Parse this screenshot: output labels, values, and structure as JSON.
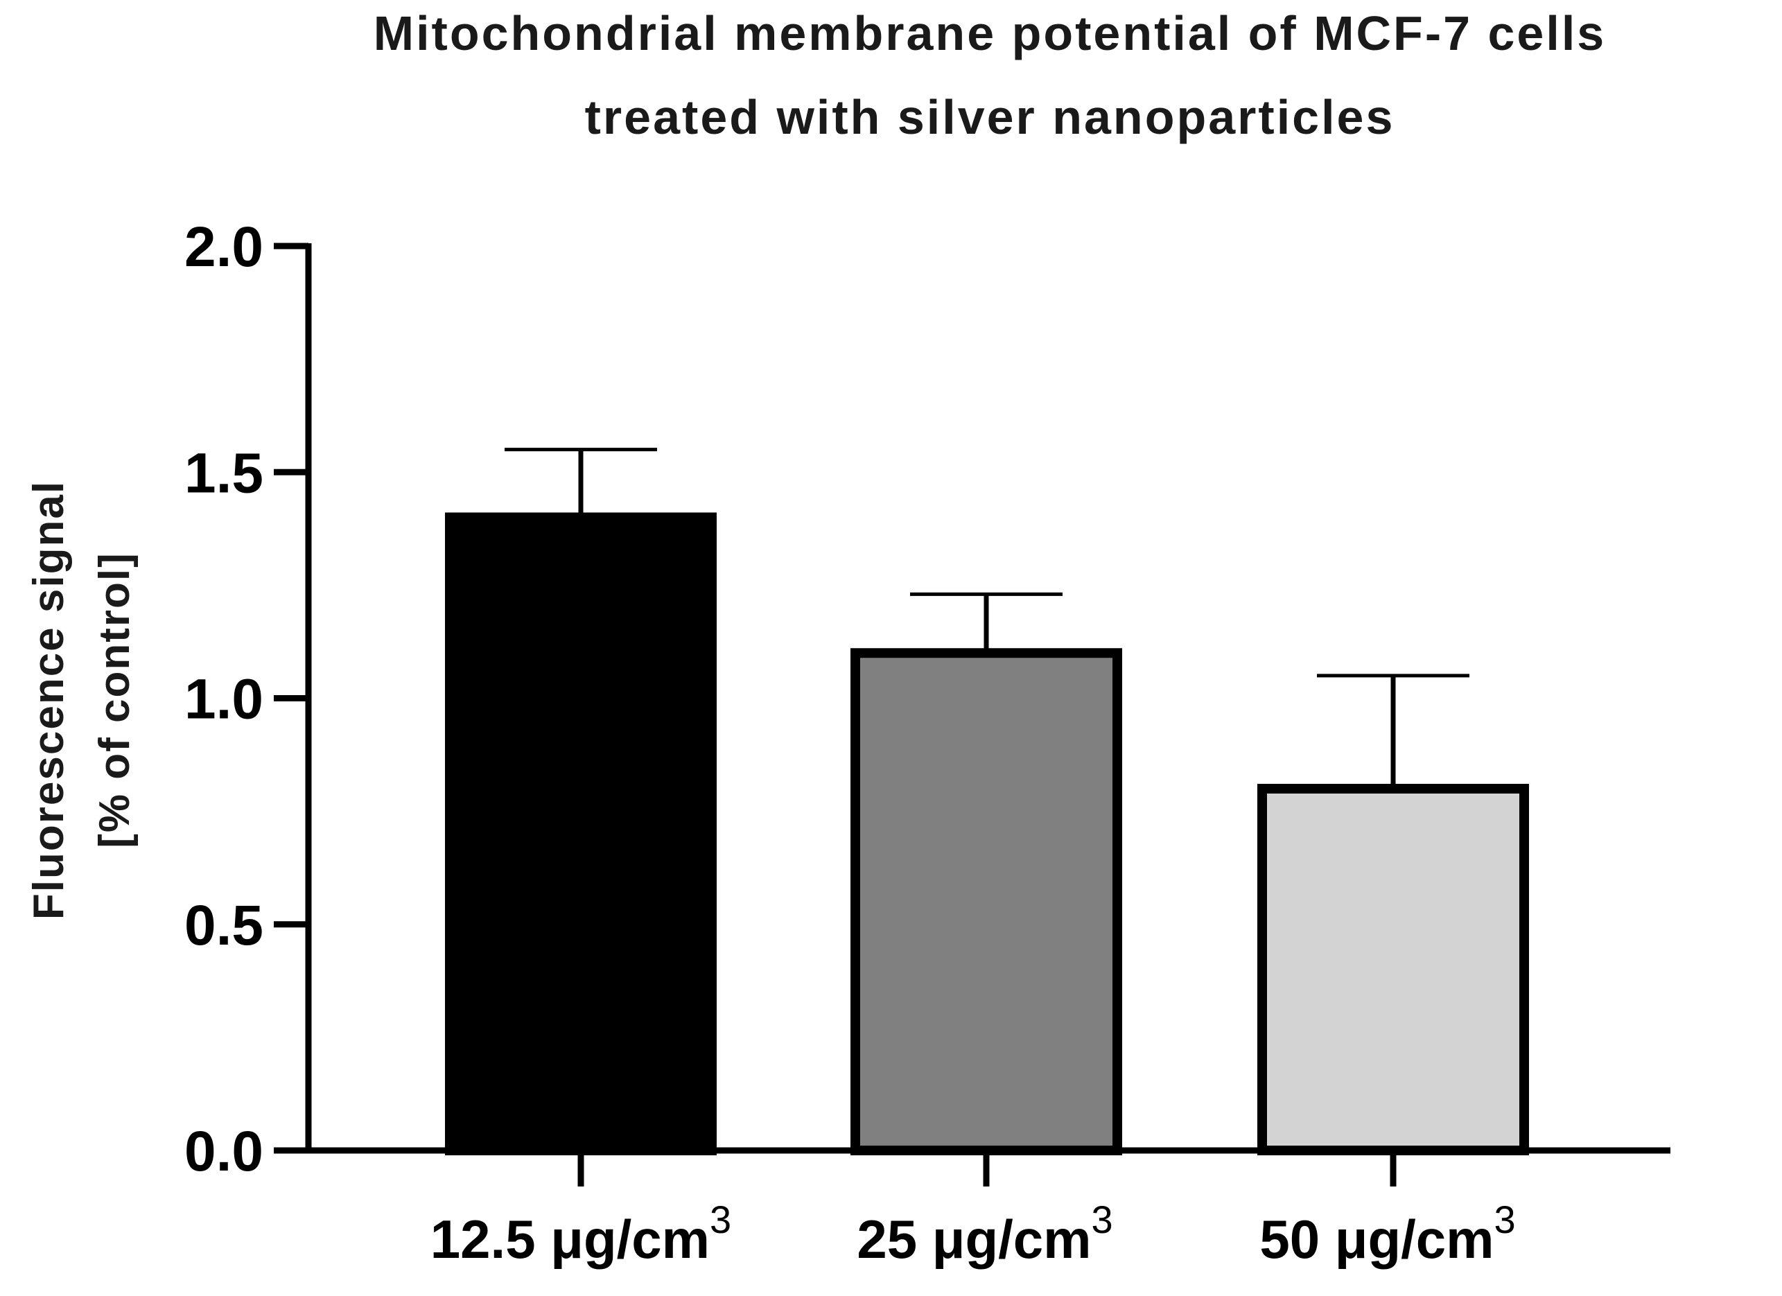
{
  "chart_data": {
    "type": "bar",
    "title_lines": [
      "Mitochondrial membrane potential of MCF-7 cells",
      "treated with silver nanoparticles"
    ],
    "ylabel_lines": [
      "Fluorescence signal",
      "[% of control]"
    ],
    "xlabel": "",
    "categories": [
      {
        "text": "12.5 μg/cm",
        "sup": "3"
      },
      {
        "text": "25 μg/cm",
        "sup": "3"
      },
      {
        "text": "50 μg/cm",
        "sup": "3"
      }
    ],
    "values": [
      1.4,
      1.1,
      0.8
    ],
    "errors": [
      0.15,
      0.13,
      0.25
    ],
    "bar_colors": [
      "#000000",
      "#808080",
      "#d3d3d3"
    ],
    "bar_edge_color": "#000000",
    "ylim": [
      0,
      2.0
    ],
    "yticks": [
      "0.0",
      "0.5",
      "1.0",
      "1.5",
      "2.0"
    ],
    "ytick_values": [
      0,
      0.5,
      1.0,
      1.5,
      2.0
    ],
    "grid": false,
    "legend": "none"
  }
}
